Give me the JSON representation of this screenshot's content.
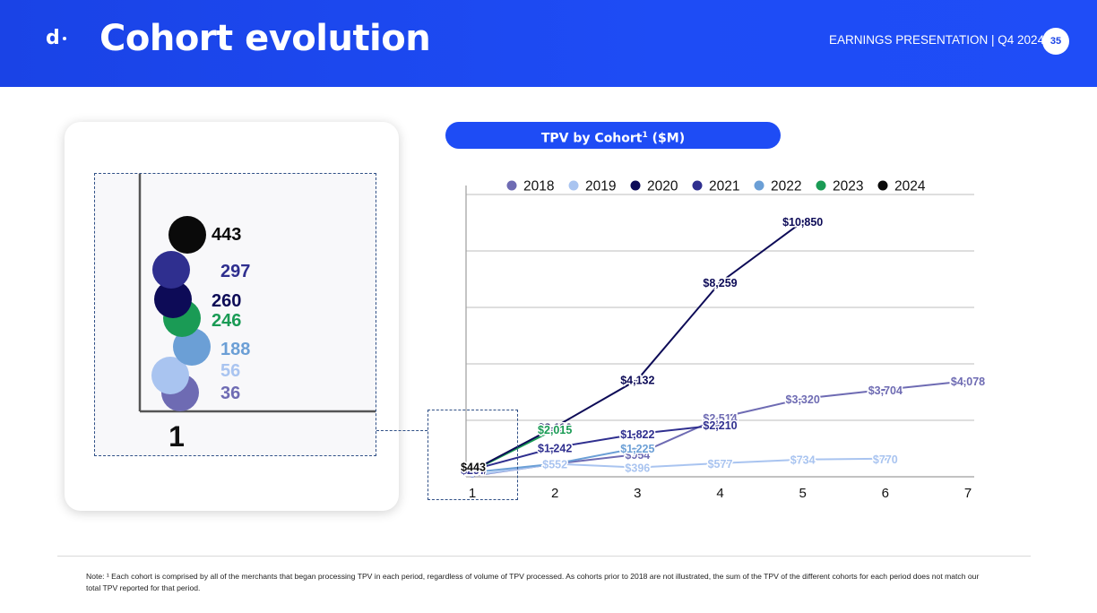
{
  "header": {
    "logo": "d",
    "title": "Cohort evolution",
    "subtitle": "EARNINGS PRESENTATION | Q4 2024",
    "page_number": "35"
  },
  "chart_title": "TPV by Cohort",
  "chart_title_sup": "1",
  "chart_title_unit": " ($M)",
  "note": "Note: ¹ Each cohort is comprised by all of the merchants that began processing TPV in each period, regardless of volume of TPV processed. As cohorts prior to 2018 are not illustrated, the sum of the TPV of the different cohorts for each period does not match our total TPV reported for that period.",
  "colors": {
    "2018": "#6e6bb3",
    "2019": "#a9c4f0",
    "2020": "#0d0b57",
    "2021": "#2f2f8f",
    "2022": "#6b9fd6",
    "2023": "#1a9b55",
    "2024": "#0a0a0a"
  },
  "chart_data": {
    "type": "line",
    "x": [
      1,
      2,
      3,
      4,
      5,
      6,
      7
    ],
    "ylim": [
      0,
      12000
    ],
    "legend_position": "top",
    "grid": true,
    "series": [
      {
        "name": "2018",
        "values": [
          36,
          552,
          954,
          2514,
          3320,
          3704,
          4078
        ],
        "labels": [
          "",
          "",
          "$954",
          "$2,514",
          "$3,320",
          "$3,704",
          "$4,078"
        ]
      },
      {
        "name": "2019",
        "values": [
          56,
          552,
          396,
          577,
          734,
          770,
          null
        ],
        "labels": [
          "",
          "$552",
          "$396",
          "$577",
          "$734",
          "$770",
          ""
        ]
      },
      {
        "name": "2020",
        "values": [
          260,
          2116,
          4132,
          8259,
          10850,
          null,
          null
        ],
        "labels": [
          "$260",
          "$2,116",
          "$4,132",
          "$8,259",
          "$10,850",
          "",
          ""
        ]
      },
      {
        "name": "2021",
        "values": [
          297,
          1242,
          1822,
          2210,
          null,
          null,
          null
        ],
        "labels": [
          "$297",
          "$1,242",
          "$1,822",
          "$2,210",
          "",
          "",
          ""
        ]
      },
      {
        "name": "2022",
        "values": [
          188,
          552,
          1225,
          null,
          null,
          null,
          null
        ],
        "labels": [
          "",
          "",
          "$1,225",
          "",
          "",
          "",
          ""
        ]
      },
      {
        "name": "2023",
        "values": [
          246,
          2015,
          null,
          null,
          null,
          null,
          null
        ],
        "labels": [
          "",
          "$2,015",
          "",
          "",
          "",
          "",
          ""
        ]
      },
      {
        "name": "2024",
        "values": [
          443,
          null,
          null,
          null,
          null,
          null,
          null
        ],
        "labels": [
          "$443",
          "",
          "",
          "",
          "",
          "",
          ""
        ]
      }
    ],
    "zoom_inset": {
      "x_label": "1",
      "points": [
        {
          "name": "2024",
          "value": "443"
        },
        {
          "name": "2021",
          "value": "297"
        },
        {
          "name": "2020",
          "value": "260"
        },
        {
          "name": "2023",
          "value": "246"
        },
        {
          "name": "2022",
          "value": "188"
        },
        {
          "name": "2019",
          "value": "56"
        },
        {
          "name": "2018",
          "value": "36"
        }
      ]
    }
  }
}
